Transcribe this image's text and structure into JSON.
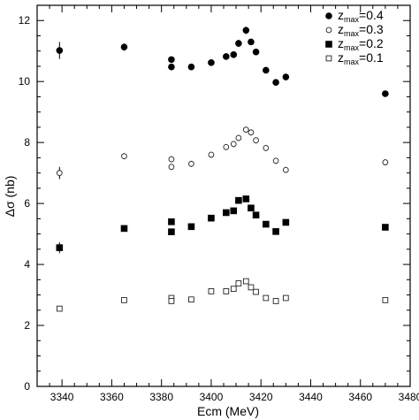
{
  "chart_data": {
    "type": "scatter",
    "title": "",
    "xlabel": "Ecm (MeV)",
    "ylabel": "Δσ (nb)",
    "xlim": [
      3330,
      3480
    ],
    "ylim": [
      0,
      12.5
    ],
    "xticks": [
      3340,
      3360,
      3380,
      3400,
      3420,
      3440,
      3460,
      3480
    ],
    "yticks": [
      0,
      2,
      4,
      6,
      8,
      10,
      12
    ],
    "grid": false,
    "legend_position": "top-right",
    "series": [
      {
        "name": "z_max=0.4",
        "legend_base": "z",
        "legend_sub": "max",
        "legend_rest": "=0.4",
        "marker": "filled-circle",
        "x": [
          3339,
          3365,
          3384,
          3384,
          3392,
          3400,
          3406,
          3409,
          3411,
          3414,
          3416,
          3418,
          3422,
          3426,
          3430,
          3470
        ],
        "y": [
          11.02,
          11.13,
          10.72,
          10.48,
          10.48,
          10.62,
          10.82,
          10.88,
          11.25,
          11.68,
          11.3,
          10.97,
          10.37,
          9.97,
          10.15,
          9.6
        ],
        "yerr": [
          0.28,
          0.12,
          0.1,
          0.1,
          0.1,
          0.1,
          0.1,
          0.1,
          0.12,
          0.12,
          0.1,
          0.1,
          0.1,
          0.1,
          0.1,
          0.1
        ]
      },
      {
        "name": "z_max=0.3",
        "legend_base": "z",
        "legend_sub": "max",
        "legend_rest": "=0.3",
        "marker": "open-circle",
        "x": [
          3339,
          3365,
          3384,
          3384,
          3392,
          3400,
          3406,
          3409,
          3411,
          3414,
          3416,
          3418,
          3422,
          3426,
          3430,
          3470
        ],
        "y": [
          7.0,
          7.55,
          7.45,
          7.2,
          7.3,
          7.6,
          7.85,
          7.95,
          8.15,
          8.42,
          8.33,
          8.07,
          7.82,
          7.4,
          7.1,
          7.35
        ],
        "yerr": [
          0.2,
          0.1,
          0.1,
          0.1,
          0.1,
          0.1,
          0.1,
          0.1,
          0.1,
          0.1,
          0.1,
          0.1,
          0.1,
          0.1,
          0.1,
          0.1
        ]
      },
      {
        "name": "z_max=0.2",
        "legend_base": "z",
        "legend_sub": "max",
        "legend_rest": "=0.2",
        "marker": "filled-square",
        "x": [
          3339,
          3365,
          3384,
          3384,
          3392,
          3400,
          3406,
          3409,
          3411,
          3414,
          3416,
          3418,
          3422,
          3426,
          3430,
          3470
        ],
        "y": [
          4.55,
          5.18,
          5.4,
          5.07,
          5.24,
          5.52,
          5.7,
          5.76,
          6.1,
          6.15,
          5.85,
          5.62,
          5.32,
          5.08,
          5.38,
          5.22
        ],
        "yerr": [
          0.18,
          0.08,
          0.08,
          0.08,
          0.08,
          0.08,
          0.08,
          0.08,
          0.08,
          0.08,
          0.08,
          0.08,
          0.08,
          0.08,
          0.08,
          0.08
        ]
      },
      {
        "name": "z_max=0.1",
        "legend_base": "z",
        "legend_sub": "max",
        "legend_rest": "=0.1",
        "marker": "open-square",
        "x": [
          3339,
          3365,
          3384,
          3384,
          3392,
          3400,
          3406,
          3409,
          3411,
          3414,
          3416,
          3418,
          3422,
          3426,
          3430,
          3470
        ],
        "y": [
          2.55,
          2.83,
          2.9,
          2.8,
          2.85,
          3.12,
          3.12,
          3.2,
          3.38,
          3.45,
          3.25,
          3.1,
          2.9,
          2.8,
          2.9,
          2.83
        ],
        "yerr": [
          0.05,
          0.05,
          0.05,
          0.05,
          0.05,
          0.05,
          0.05,
          0.05,
          0.05,
          0.05,
          0.05,
          0.05,
          0.05,
          0.05,
          0.05,
          0.05
        ]
      }
    ]
  }
}
